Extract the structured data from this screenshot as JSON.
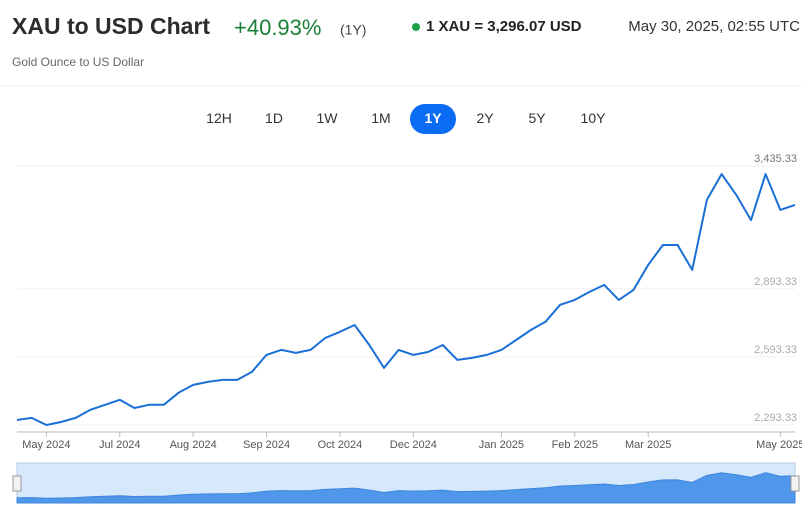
{
  "header": {
    "title": "XAU to USD Chart",
    "change": "+40.93%",
    "period": "(1Y)",
    "rate": "1 XAU = 3,296.07 USD",
    "timestamp": "May 30, 2025, 02:55 UTC",
    "subtitle": "Gold Ounce to US Dollar"
  },
  "range_buttons": {
    "labels": [
      "12H",
      "1D",
      "1W",
      "1M",
      "1Y",
      "2Y",
      "5Y",
      "10Y"
    ],
    "active_index": 4
  },
  "chart_data": {
    "type": "line",
    "categories": [
      null,
      null,
      "May 2024",
      null,
      null,
      null,
      null,
      "Jul 2024",
      null,
      null,
      null,
      null,
      "Aug 2024",
      null,
      null,
      null,
      null,
      "Sep 2024",
      null,
      null,
      null,
      null,
      "Oct 2024",
      null,
      null,
      null,
      null,
      "Dec 2024",
      null,
      null,
      null,
      null,
      null,
      "Jan 2025",
      null,
      null,
      null,
      null,
      "Feb 2025",
      null,
      null,
      null,
      null,
      "Mar 2025",
      null,
      null,
      null,
      null,
      null,
      null,
      null,
      null,
      "May 2025",
      null
    ],
    "series": [
      {
        "name": "XAU/USD",
        "color": "#1a6fd6",
        "values": [
          2315,
          2324,
          2293,
          2306,
          2324,
          2360,
          2382,
          2404,
          2368,
          2382,
          2382,
          2435,
          2470,
          2483,
          2492,
          2492,
          2527,
          2602,
          2624,
          2611,
          2624,
          2677,
          2704,
          2734,
          2646,
          2545,
          2624,
          2602,
          2615,
          2646,
          2580,
          2589,
          2602,
          2624,
          2668,
          2712,
          2748,
          2823,
          2845,
          2880,
          2911,
          2845,
          2889,
          2999,
          3087,
          3087,
          2977,
          3286,
          3400,
          3308,
          3197,
          3400,
          3242,
          3264
        ]
      }
    ],
    "ylim": [
      2262,
      3462
    ],
    "yticks": [
      {
        "value": 2293.33,
        "label": "2,293.33"
      },
      {
        "value": 2593.33,
        "label": "2,593.33"
      },
      {
        "value": 2893.33,
        "label": "2,893.33"
      },
      {
        "value": 3435.33,
        "label": "3,435.33"
      }
    ],
    "grid": true
  }
}
